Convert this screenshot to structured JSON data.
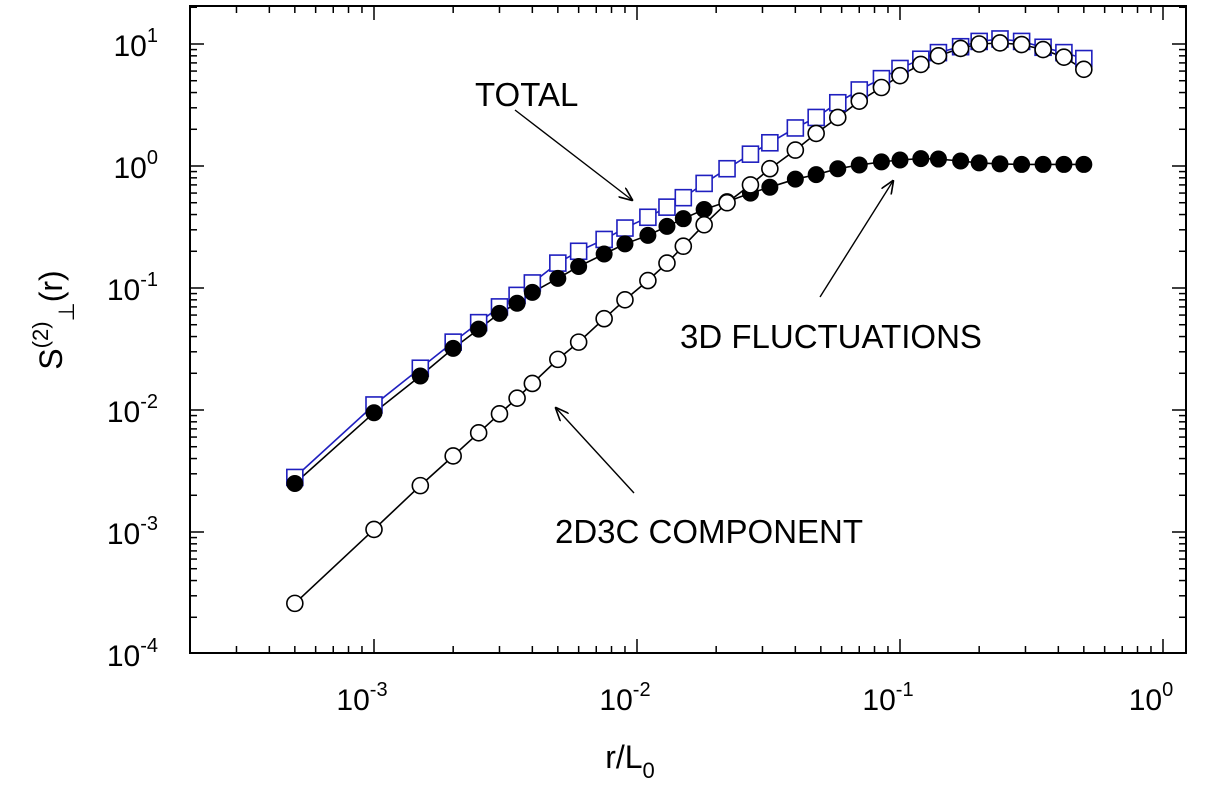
{
  "chart_data": {
    "type": "scatter",
    "xlabel": {
      "base": "r/L",
      "sub": "0"
    },
    "ylabel": {
      "base": "S",
      "sup": "(2)",
      "sub": "⊥",
      "tail": "(r)"
    },
    "xscale": "log",
    "yscale": "log",
    "xlim": [
      0.0002,
      1
    ],
    "ylim": [
      0.0001,
      20
    ],
    "grid": false,
    "x_ticks": [
      {
        "value": 0.001,
        "base": "10",
        "exp": "-3"
      },
      {
        "value": 0.01,
        "base": "10",
        "exp": "-2"
      },
      {
        "value": 0.1,
        "base": "10",
        "exp": "-1"
      },
      {
        "value": 1,
        "base": "10",
        "exp": "0"
      }
    ],
    "y_ticks": [
      {
        "value": 0.0001,
        "base": "10",
        "exp": "-4"
      },
      {
        "value": 0.001,
        "base": "10",
        "exp": "-3"
      },
      {
        "value": 0.01,
        "base": "10",
        "exp": "-2"
      },
      {
        "value": 0.1,
        "base": "10",
        "exp": "-1"
      },
      {
        "value": 1,
        "base": "10",
        "exp": "0"
      },
      {
        "value": 10,
        "base": "10",
        "exp": "1"
      }
    ],
    "series": [
      {
        "key": "total",
        "marker": "open-square",
        "color": "#1f1fbf",
        "x": [
          0.0005,
          0.001,
          0.0015,
          0.002,
          0.0025,
          0.003,
          0.0035,
          0.004,
          0.005,
          0.006,
          0.0075,
          0.009,
          0.011,
          0.013,
          0.015,
          0.018,
          0.022,
          0.027,
          0.032,
          0.04,
          0.048,
          0.058,
          0.07,
          0.085,
          0.1,
          0.12,
          0.14,
          0.17,
          0.2,
          0.24,
          0.29,
          0.35,
          0.42,
          0.5
        ],
        "y": [
          0.0028,
          0.011,
          0.022,
          0.036,
          0.052,
          0.07,
          0.087,
          0.11,
          0.16,
          0.2,
          0.25,
          0.31,
          0.38,
          0.46,
          0.55,
          0.72,
          0.95,
          1.25,
          1.55,
          2.05,
          2.5,
          3.3,
          4.2,
          5.2,
          6.3,
          7.5,
          8.5,
          9.5,
          10.5,
          11,
          10.5,
          9.4,
          8.5,
          7.6
        ]
      },
      {
        "key": "3d-fluctuations",
        "marker": "filled-circle",
        "color": "#000000",
        "x": [
          0.0005,
          0.001,
          0.0015,
          0.002,
          0.0025,
          0.003,
          0.0035,
          0.004,
          0.005,
          0.006,
          0.0075,
          0.009,
          0.011,
          0.013,
          0.015,
          0.018,
          0.022,
          0.027,
          0.032,
          0.04,
          0.048,
          0.058,
          0.07,
          0.085,
          0.1,
          0.12,
          0.14,
          0.17,
          0.2,
          0.24,
          0.29,
          0.35,
          0.42,
          0.5
        ],
        "y": [
          0.0025,
          0.0095,
          0.019,
          0.032,
          0.046,
          0.062,
          0.075,
          0.092,
          0.12,
          0.15,
          0.19,
          0.23,
          0.27,
          0.32,
          0.37,
          0.44,
          0.51,
          0.6,
          0.67,
          0.78,
          0.85,
          0.95,
          1.02,
          1.08,
          1.12,
          1.15,
          1.14,
          1.1,
          1.06,
          1.04,
          1.03,
          1.03,
          1.03,
          1.03
        ]
      },
      {
        "key": "2d3c-component",
        "marker": "open-circle",
        "color": "#000000",
        "x": [
          0.0005,
          0.001,
          0.0015,
          0.002,
          0.0025,
          0.003,
          0.0035,
          0.004,
          0.005,
          0.006,
          0.0075,
          0.009,
          0.011,
          0.013,
          0.015,
          0.018,
          0.022,
          0.027,
          0.032,
          0.04,
          0.048,
          0.058,
          0.07,
          0.085,
          0.1,
          0.12,
          0.14,
          0.17,
          0.2,
          0.24,
          0.29,
          0.35,
          0.42,
          0.5
        ],
        "y": [
          0.00026,
          0.00105,
          0.0024,
          0.0042,
          0.0065,
          0.0093,
          0.0125,
          0.0165,
          0.026,
          0.036,
          0.056,
          0.08,
          0.115,
          0.16,
          0.22,
          0.33,
          0.5,
          0.7,
          0.95,
          1.35,
          1.85,
          2.5,
          3.4,
          4.4,
          5.5,
          6.8,
          8.0,
          9.2,
          10.0,
          10.2,
          9.9,
          9.0,
          7.8,
          6.2
        ]
      }
    ],
    "annotations": [
      {
        "key": "total",
        "text": "TOTAL",
        "arrow_to": [
          0.01,
          0.42
        ]
      },
      {
        "key": "3d",
        "text": "3D FLUCTUATIONS",
        "arrow_to": [
          0.1,
          1.1
        ]
      },
      {
        "key": "2d3c",
        "text": "2D3C COMPONENT",
        "arrow_to": [
          0.0042,
          0.0065
        ]
      }
    ]
  }
}
